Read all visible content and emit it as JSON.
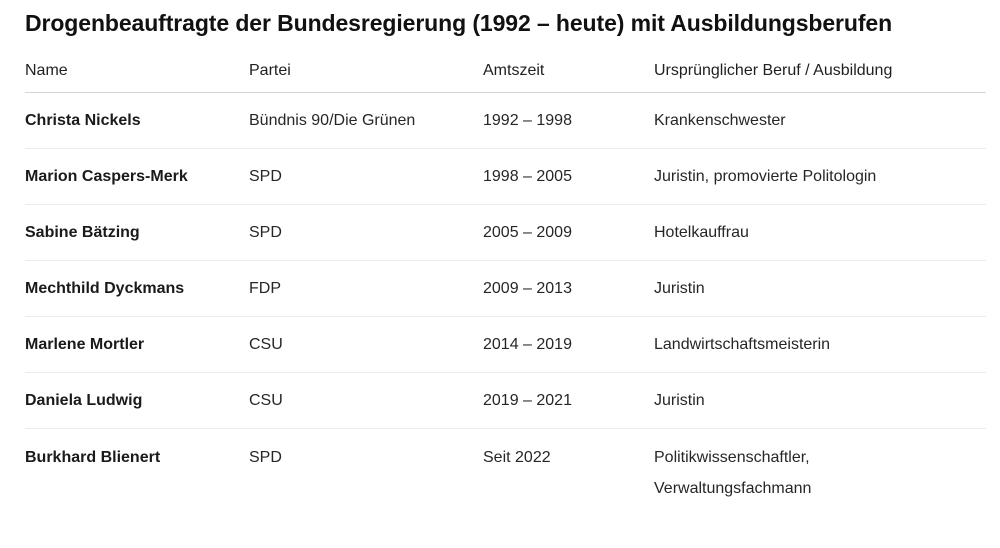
{
  "title": "Drogenbeauftragte der Bundesregierung (1992 – heute) mit Ausbildungsberufen",
  "table": {
    "headers": [
      "Name",
      "Partei",
      "Amtszeit",
      "Ursprünglicher Beruf / Ausbildung"
    ],
    "rows": [
      {
        "name": "Christa Nickels",
        "party": "Bündnis 90/Die Grünen",
        "term": "1992 – 1998",
        "profession": "Krankenschwester"
      },
      {
        "name": "Marion Caspers-Merk",
        "party": "SPD",
        "term": "1998 – 2005",
        "profession": "Juristin, promovierte Politologin"
      },
      {
        "name": "Sabine Bätzing",
        "party": "SPD",
        "term": "2005 – 2009",
        "profession": "Hotelkauffrau"
      },
      {
        "name": "Mechthild Dyckmans",
        "party": "FDP",
        "term": "2009 – 2013",
        "profession": "Juristin"
      },
      {
        "name": "Marlene Mortler",
        "party": "CSU",
        "term": "2014 – 2019",
        "profession": "Landwirtschaftsmeisterin"
      },
      {
        "name": "Daniela Ludwig",
        "party": "CSU",
        "term": "2019 – 2021",
        "profession": "Juristin"
      },
      {
        "name": "Burkhard Blienert",
        "party": "SPD",
        "term": "Seit 2022",
        "profession_lines": [
          "Politikwissenschaftler,",
          "Verwaltungsfachmann"
        ]
      }
    ]
  }
}
